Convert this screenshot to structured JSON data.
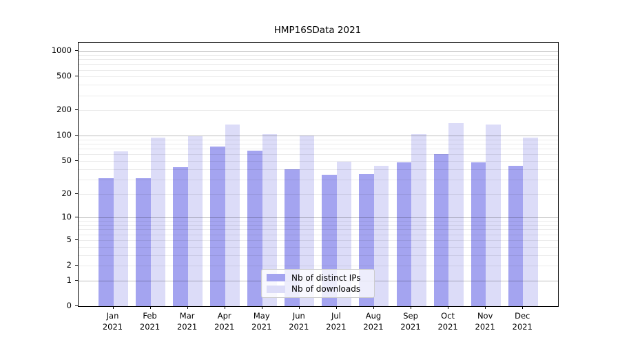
{
  "title": "HMP16SData 2021",
  "legend": {
    "items": [
      {
        "label": "Nb of distinct IPs",
        "color": "#a4a4f0"
      },
      {
        "label": "Nb of downloads",
        "color": "#dcdcf8"
      }
    ]
  },
  "y_axis": {
    "tick_labels": [
      "0",
      "1",
      "2",
      "5",
      "10",
      "20",
      "50",
      "100",
      "200",
      "500",
      "1000"
    ],
    "tick_values": [
      0,
      1,
      2,
      5,
      10,
      20,
      50,
      100,
      200,
      500,
      1000
    ],
    "major_grid_values": [
      1,
      10,
      100,
      1000
    ],
    "minor_grid_values": [
      2,
      3,
      4,
      5,
      6,
      7,
      8,
      9,
      20,
      30,
      40,
      50,
      60,
      70,
      80,
      90,
      200,
      300,
      400,
      500,
      600,
      700,
      800,
      900
    ]
  },
  "x_axis": {
    "categories": [
      {
        "month": "Jan",
        "year": "2021"
      },
      {
        "month": "Feb",
        "year": "2021"
      },
      {
        "month": "Mar",
        "year": "2021"
      },
      {
        "month": "Apr",
        "year": "2021"
      },
      {
        "month": "May",
        "year": "2021"
      },
      {
        "month": "Jun",
        "year": "2021"
      },
      {
        "month": "Jul",
        "year": "2021"
      },
      {
        "month": "Aug",
        "year": "2021"
      },
      {
        "month": "Sep",
        "year": "2021"
      },
      {
        "month": "Oct",
        "year": "2021"
      },
      {
        "month": "Nov",
        "year": "2021"
      },
      {
        "month": "Dec",
        "year": "2021"
      }
    ]
  },
  "chart_data": {
    "type": "bar",
    "title": "HMP16SData 2021",
    "categories": [
      "Jan 2021",
      "Feb 2021",
      "Mar 2021",
      "Apr 2021",
      "May 2021",
      "Jun 2021",
      "Jul 2021",
      "Aug 2021",
      "Sep 2021",
      "Oct 2021",
      "Nov 2021",
      "Dec 2021"
    ],
    "series": [
      {
        "name": "Nb of distinct IPs",
        "color": "#a4a4f0",
        "values": [
          31,
          31,
          42,
          74,
          67,
          40,
          34,
          35,
          48,
          60,
          48,
          44
        ]
      },
      {
        "name": "Nb of downloads",
        "color": "#dcdcf8",
        "values": [
          65,
          96,
          98,
          137,
          104,
          100,
          49,
          44,
          104,
          142,
          135,
          96
        ]
      }
    ],
    "xlabel": "",
    "ylabel": "",
    "yscale": "log1p",
    "ylim": [
      0,
      1000
    ],
    "yticks": [
      0,
      1,
      2,
      5,
      10,
      20,
      50,
      100,
      200,
      500,
      1000
    ],
    "grid": true,
    "legend_position": "lower-center"
  }
}
